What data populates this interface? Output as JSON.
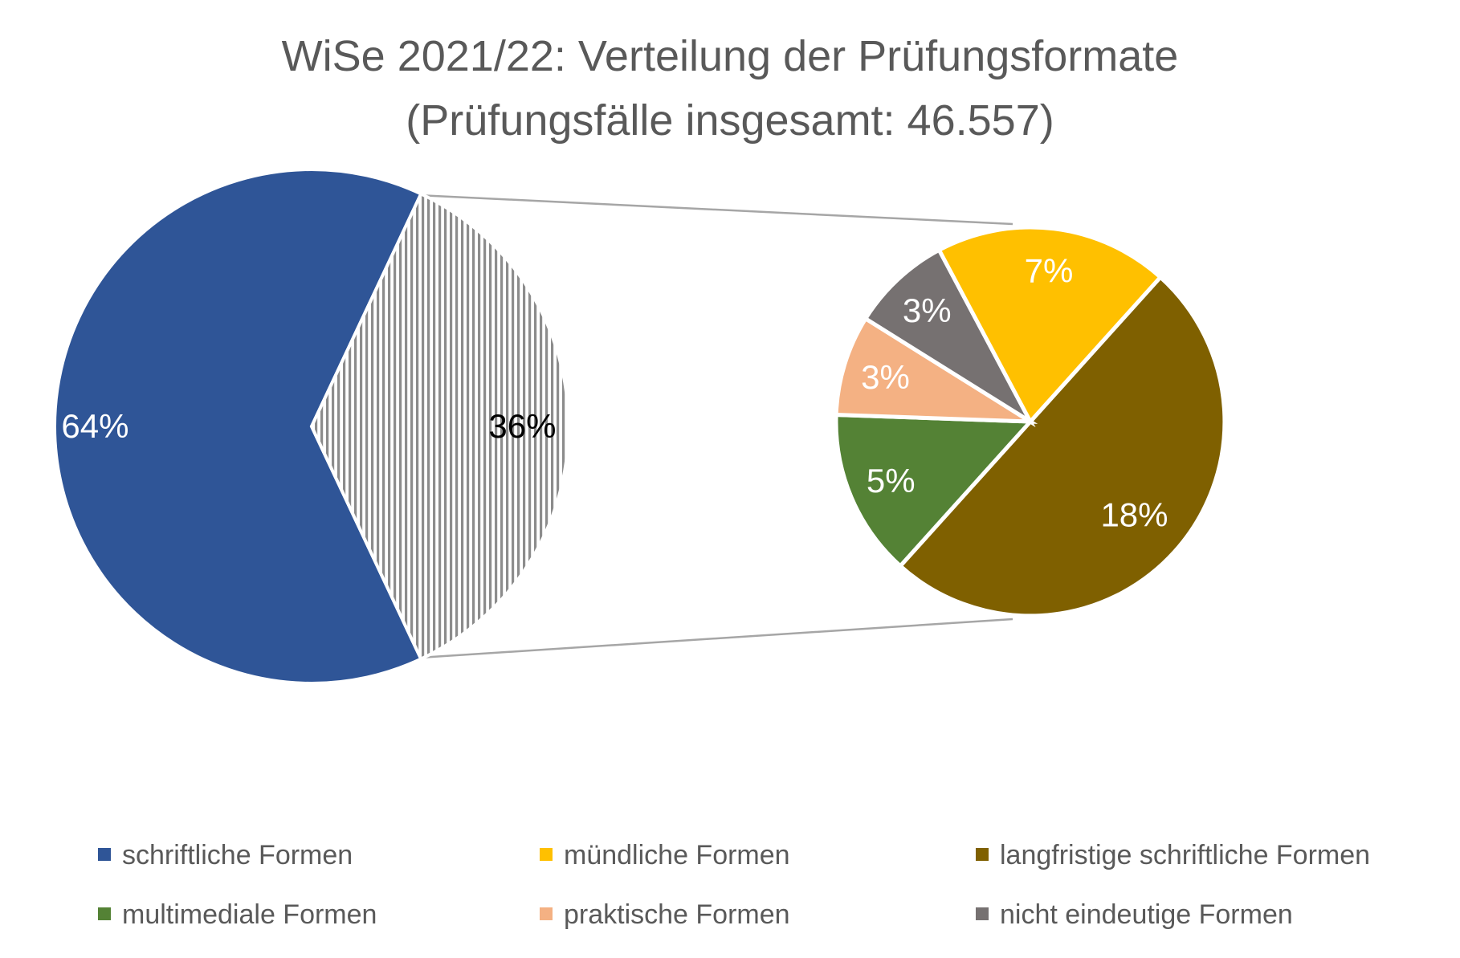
{
  "chart_data": {
    "type": "pie",
    "subtype": "bar-of-pie (pie of pie)",
    "title": "WiSe 2021/22: Verteilung der Prüfungsformate",
    "subtitle": "(Prüfungsfälle insgesamt: 46.557)",
    "primary": {
      "slices": [
        {
          "name": "schriftliche Formen",
          "value": 64,
          "label": "64%",
          "color": "#2F5597",
          "label_color": "#ffffff"
        },
        {
          "name": "",
          "value": 36,
          "label": "36%",
          "color": "#A6A6A6",
          "pattern": "vertical-stripes",
          "label_color": "#000000"
        }
      ]
    },
    "secondary": {
      "slices": [
        {
          "name": "langfristige schriftliche Formen",
          "value": 18,
          "label": "18%",
          "color": "#7F6000",
          "label_color": "#ffffff"
        },
        {
          "name": "multimediale Formen",
          "value": 5,
          "label": "5%",
          "color": "#548235",
          "label_color": "#ffffff"
        },
        {
          "name": "praktische Formen",
          "value": 3,
          "label": "3%",
          "color": "#F4B183",
          "label_color": "#ffffff"
        },
        {
          "name": "nicht eindeutige Formen",
          "value": 3,
          "label": "3%",
          "color": "#767171",
          "label_color": "#ffffff"
        },
        {
          "name": "mündliche Formen",
          "value": 7,
          "label": "7%",
          "color": "#FFC000",
          "label_color": "#ffffff"
        }
      ]
    },
    "legend": {
      "position": "bottom",
      "items": [
        {
          "label": "schriftliche Formen",
          "color": "#2F5597"
        },
        {
          "label": "mündliche Formen",
          "color": "#FFC000"
        },
        {
          "label": "langfristige schriftliche Formen",
          "color": "#7F6000"
        },
        {
          "label": "multimediale Formen",
          "color": "#548235"
        },
        {
          "label": "praktische Formen",
          "color": "#F4B183"
        },
        {
          "label": "nicht eindeutige Formen",
          "color": "#767171"
        }
      ]
    }
  }
}
